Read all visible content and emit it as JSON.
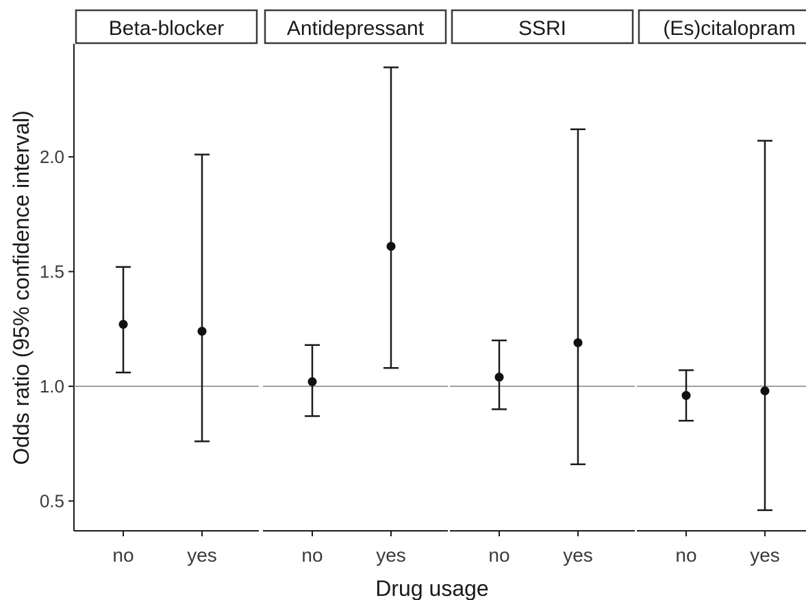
{
  "chart_data": {
    "type": "errorbar",
    "xlabel": "Drug usage",
    "ylabel": "Odds ratio (95% confidence interval)",
    "ylim": [
      0.4,
      2.5
    ],
    "yticks": [
      0.5,
      1.0,
      1.5,
      2.0
    ],
    "ytick_labels": [
      "0.5",
      "1.0",
      "1.5",
      "2.0"
    ],
    "reference_line": 1.0,
    "categories": [
      "no",
      "yes"
    ],
    "panels": [
      {
        "title": "Beta-blocker",
        "points": [
          {
            "x": "no",
            "y": 1.27,
            "lower": 1.06,
            "upper": 1.52
          },
          {
            "x": "yes",
            "y": 1.24,
            "lower": 0.76,
            "upper": 2.01
          }
        ]
      },
      {
        "title": "Antidepressant",
        "points": [
          {
            "x": "no",
            "y": 1.02,
            "lower": 0.87,
            "upper": 1.18
          },
          {
            "x": "yes",
            "y": 1.61,
            "lower": 1.08,
            "upper": 2.39
          }
        ]
      },
      {
        "title": "SSRI",
        "points": [
          {
            "x": "no",
            "y": 1.04,
            "lower": 0.9,
            "upper": 1.2
          },
          {
            "x": "yes",
            "y": 1.19,
            "lower": 0.66,
            "upper": 2.12
          }
        ]
      },
      {
        "title": "(Es)citalopram",
        "points": [
          {
            "x": "no",
            "y": 0.96,
            "lower": 0.85,
            "upper": 1.07
          },
          {
            "x": "yes",
            "y": 0.98,
            "lower": 0.46,
            "upper": 2.07
          }
        ]
      }
    ]
  }
}
